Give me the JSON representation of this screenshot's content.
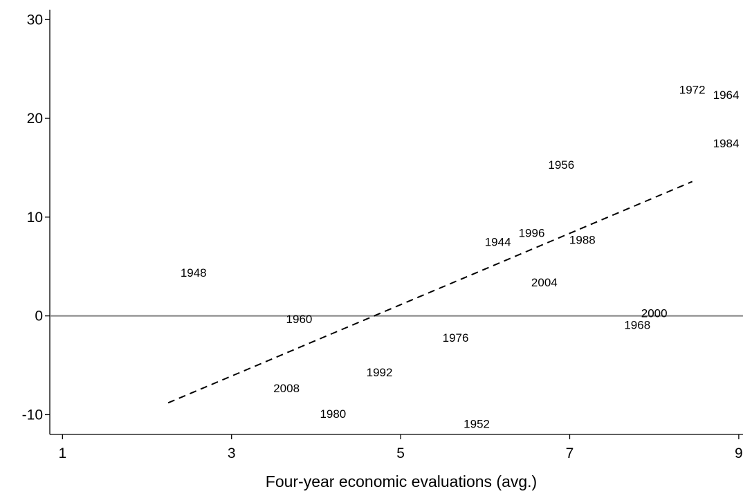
{
  "chart_data": {
    "type": "scatter",
    "title": "",
    "xlabel": "Four-year economic evaluations (avg.)",
    "ylabel": "",
    "xlim": [
      0.85,
      9.05
    ],
    "ylim": [
      -12,
      31
    ],
    "x_ticks": [
      1,
      3,
      5,
      7,
      9
    ],
    "x_tick_labels": [
      "1",
      "3",
      "5",
      "7",
      "9"
    ],
    "y_ticks": [
      -10,
      0,
      10,
      20,
      30
    ],
    "y_tick_labels": [
      "-10",
      "0",
      "10",
      "20",
      "30"
    ],
    "grid": false,
    "legend": "none",
    "marker": "year label only",
    "points": [
      {
        "label": "1944",
        "x": 6.15,
        "y": 7.5
      },
      {
        "label": "1948",
        "x": 2.55,
        "y": 4.4
      },
      {
        "label": "1952",
        "x": 5.9,
        "y": -10.9
      },
      {
        "label": "1956",
        "x": 6.9,
        "y": 15.3
      },
      {
        "label": "1960",
        "x": 3.8,
        "y": -0.3
      },
      {
        "label": "1964",
        "x": 8.85,
        "y": 22.4
      },
      {
        "label": "1968",
        "x": 7.8,
        "y": -0.9
      },
      {
        "label": "1972",
        "x": 8.45,
        "y": 22.9
      },
      {
        "label": "1976",
        "x": 5.65,
        "y": -2.2
      },
      {
        "label": "1980",
        "x": 4.2,
        "y": -9.9
      },
      {
        "label": "1984",
        "x": 8.85,
        "y": 17.5
      },
      {
        "label": "1988",
        "x": 7.15,
        "y": 7.7
      },
      {
        "label": "1992",
        "x": 4.75,
        "y": -5.7
      },
      {
        "label": "1996",
        "x": 6.55,
        "y": 8.4
      },
      {
        "label": "2000",
        "x": 8.0,
        "y": 0.3
      },
      {
        "label": "2004",
        "x": 6.7,
        "y": 3.4
      },
      {
        "label": "2008",
        "x": 3.65,
        "y": -7.3
      }
    ],
    "fit_line": {
      "style": "dashed",
      "x": [
        2.25,
        8.45
      ],
      "y": [
        -8.8,
        13.6
      ]
    },
    "reference_line": {
      "y": 0,
      "color": "#808080"
    },
    "colors": {
      "text": "#000000",
      "axis": "#000000",
      "fit_line": "#000000",
      "reference_line": "#808080"
    }
  }
}
